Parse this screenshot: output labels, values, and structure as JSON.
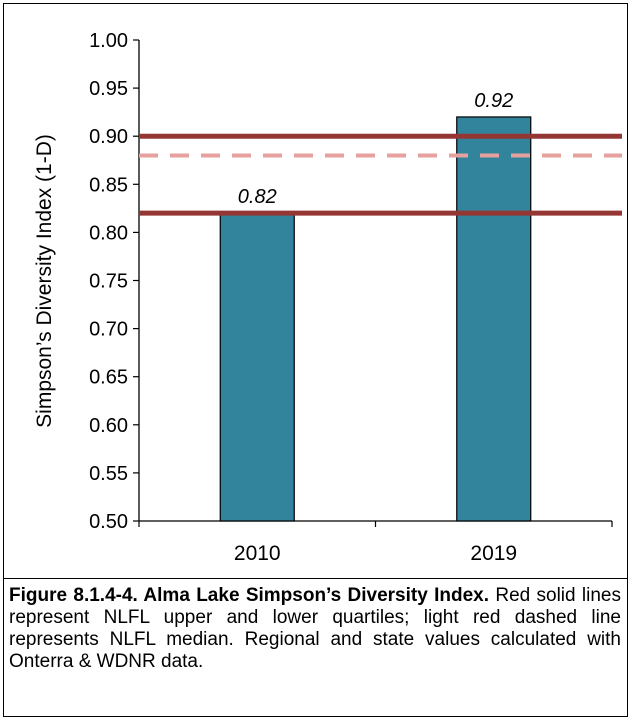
{
  "chart_data": {
    "type": "bar",
    "categories": [
      "2010",
      "2019"
    ],
    "values": [
      0.82,
      0.92
    ],
    "data_labels": [
      "0.82",
      "0.92"
    ],
    "ylabel": "Simpson’s Diversity Index (1-D)",
    "xlabel": "",
    "ylim": [
      0.5,
      1.0
    ],
    "yticks": [
      "0.50",
      "0.55",
      "0.60",
      "0.65",
      "0.70",
      "0.75",
      "0.80",
      "0.85",
      "0.90",
      "0.95",
      "1.00"
    ],
    "reference_lines": [
      {
        "value": 0.9,
        "style": "solid",
        "color": "#943634"
      },
      {
        "value": 0.88,
        "style": "dashed",
        "color": "#e6a19e"
      },
      {
        "value": 0.82,
        "style": "solid",
        "color": "#943634"
      }
    ],
    "bar_color": "#31849b",
    "grid": false
  },
  "caption": {
    "title": "Figure 8.1.4-4. Alma Lake Simpson’s Diversity Index.",
    "body": "Red solid lines represent NLFL upper and lower quartiles; light red dashed line represents NLFL median. Regional and state values calculated with Onterra & WDNR data."
  }
}
